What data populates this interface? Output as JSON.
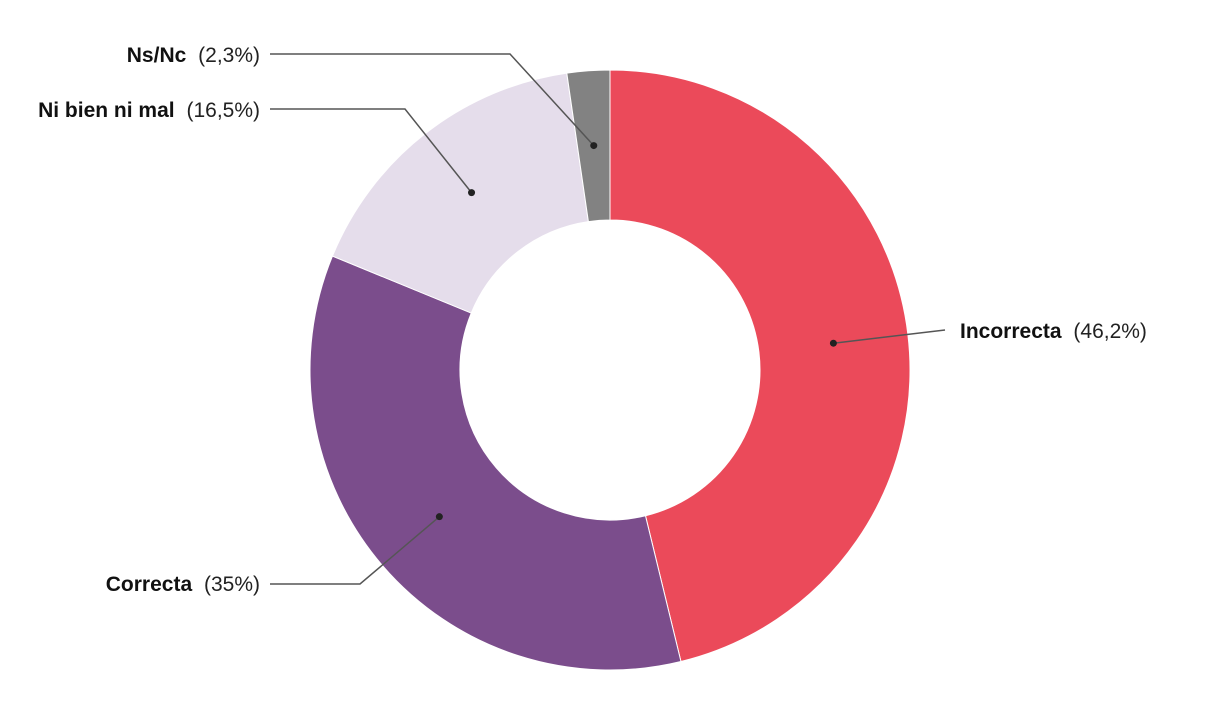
{
  "chart_data": {
    "type": "pie",
    "donut": true,
    "slices": [
      {
        "label": "Incorrecta",
        "value": 46.2,
        "value_text": "(46,2%)",
        "color": "#EB4A5A"
      },
      {
        "label": "Correcta",
        "value": 35,
        "value_text": "(35%)",
        "color": "#7B4D8C"
      },
      {
        "label": "Ni bien ni mal",
        "value": 16.5,
        "value_text": "(16,5%)",
        "color": "#E5DDEB"
      },
      {
        "label": "Ns/Nc",
        "value": 2.3,
        "value_text": "(2,3%)",
        "color": "#828282"
      }
    ]
  }
}
